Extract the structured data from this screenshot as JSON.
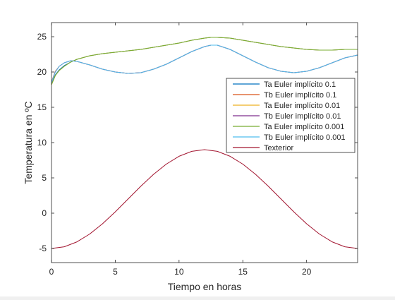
{
  "chart_data": {
    "type": "line",
    "title": "",
    "xlabel": "Tiempo en horas",
    "ylabel": "Temperatura en ºC",
    "xlim": [
      0,
      24
    ],
    "ylim": [
      -7,
      27
    ],
    "xticks": [
      0,
      5,
      10,
      15,
      20
    ],
    "yticks": [
      -5,
      0,
      5,
      10,
      15,
      20,
      25
    ],
    "grid": false,
    "legend_position": "right",
    "series": [
      {
        "name": "Ta Euler implícito 0.1",
        "color": "#0072bd",
        "x": [
          0,
          0.3,
          0.6,
          1,
          1.5,
          2,
          3,
          4,
          5,
          6,
          7,
          8,
          9,
          10,
          11,
          12,
          12.5,
          13,
          14,
          15,
          16,
          17,
          18,
          19,
          20,
          21,
          22,
          23,
          24
        ],
        "y": [
          18.3,
          19.6,
          20.3,
          20.9,
          21.4,
          21.8,
          22.3,
          22.6,
          22.8,
          23.0,
          23.2,
          23.5,
          23.8,
          24.1,
          24.5,
          24.8,
          24.9,
          24.9,
          24.8,
          24.5,
          24.2,
          23.9,
          23.6,
          23.4,
          23.2,
          23.1,
          23.1,
          23.2,
          23.2
        ]
      },
      {
        "name": "Tb Euler implícito 0.1",
        "color": "#d95319",
        "x": [
          0,
          0.3,
          0.6,
          1,
          1.5,
          2,
          3,
          4,
          5,
          6,
          7,
          8,
          9,
          10,
          11,
          12,
          12.5,
          13,
          14,
          15,
          16,
          17,
          18,
          19,
          20,
          21,
          22,
          23,
          24
        ],
        "y": [
          18.6,
          20.1,
          20.8,
          21.3,
          21.6,
          21.5,
          21.0,
          20.4,
          20.0,
          19.8,
          19.9,
          20.4,
          21.1,
          22.0,
          22.9,
          23.6,
          23.8,
          23.8,
          23.2,
          22.3,
          21.4,
          20.6,
          20.1,
          19.9,
          20.1,
          20.6,
          21.3,
          22.0,
          22.4
        ]
      },
      {
        "name": "Ta Euler implícito 0.01",
        "color": "#edb120",
        "x": [
          0,
          0.3,
          0.6,
          1,
          1.5,
          2,
          3,
          4,
          5,
          6,
          7,
          8,
          9,
          10,
          11,
          12,
          12.5,
          13,
          14,
          15,
          16,
          17,
          18,
          19,
          20,
          21,
          22,
          23,
          24
        ],
        "y": [
          18.2,
          19.5,
          20.2,
          20.8,
          21.4,
          21.8,
          22.3,
          22.6,
          22.8,
          23.0,
          23.2,
          23.5,
          23.8,
          24.1,
          24.5,
          24.8,
          24.9,
          24.9,
          24.8,
          24.5,
          24.2,
          23.9,
          23.6,
          23.4,
          23.2,
          23.1,
          23.1,
          23.2,
          23.2
        ]
      },
      {
        "name": "Tb Euler implícito 0.01",
        "color": "#7e2f8e",
        "x": [
          0,
          0.3,
          0.6,
          1,
          1.5,
          2,
          3,
          4,
          5,
          6,
          7,
          8,
          9,
          10,
          11,
          12,
          12.5,
          13,
          14,
          15,
          16,
          17,
          18,
          19,
          20,
          21,
          22,
          23,
          24
        ],
        "y": [
          18.5,
          20.0,
          20.8,
          21.3,
          21.6,
          21.5,
          21.0,
          20.4,
          20.0,
          19.8,
          19.9,
          20.4,
          21.1,
          22.0,
          22.9,
          23.6,
          23.8,
          23.8,
          23.2,
          22.3,
          21.4,
          20.6,
          20.1,
          19.9,
          20.1,
          20.6,
          21.3,
          22.0,
          22.4
        ]
      },
      {
        "name": "Ta Euler implícito 0.001",
        "color": "#77ac30",
        "x": [
          0,
          0.3,
          0.6,
          1,
          1.5,
          2,
          3,
          4,
          5,
          6,
          7,
          8,
          9,
          10,
          11,
          12,
          12.5,
          13,
          14,
          15,
          16,
          17,
          18,
          19,
          20,
          21,
          22,
          23,
          24
        ],
        "y": [
          18.2,
          19.5,
          20.2,
          20.8,
          21.4,
          21.8,
          22.3,
          22.6,
          22.8,
          23.0,
          23.2,
          23.5,
          23.8,
          24.1,
          24.5,
          24.8,
          24.9,
          24.9,
          24.8,
          24.5,
          24.2,
          23.9,
          23.6,
          23.4,
          23.2,
          23.1,
          23.1,
          23.2,
          23.2
        ]
      },
      {
        "name": "Tb Euler implícito 0.001",
        "color": "#4dbeee",
        "x": [
          0,
          0.3,
          0.6,
          1,
          1.5,
          2,
          3,
          4,
          5,
          6,
          7,
          8,
          9,
          10,
          11,
          12,
          12.5,
          13,
          14,
          15,
          16,
          17,
          18,
          19,
          20,
          21,
          22,
          23,
          24
        ],
        "y": [
          18.5,
          20.0,
          20.8,
          21.3,
          21.6,
          21.5,
          21.0,
          20.4,
          20.0,
          19.8,
          19.9,
          20.4,
          21.1,
          22.0,
          22.9,
          23.6,
          23.8,
          23.8,
          23.2,
          22.3,
          21.4,
          20.6,
          20.1,
          19.9,
          20.1,
          20.6,
          21.3,
          22.0,
          22.4
        ]
      },
      {
        "name": "Texterior",
        "color": "#a2142f",
        "x": [
          0,
          1,
          2,
          3,
          4,
          5,
          6,
          7,
          8,
          9,
          10,
          11,
          12,
          13,
          14,
          15,
          16,
          17,
          18,
          19,
          20,
          21,
          22,
          23,
          24
        ],
        "y": [
          -5.0,
          -4.76,
          -4.06,
          -2.95,
          -1.5,
          0.19,
          2.0,
          3.81,
          5.5,
          6.95,
          8.06,
          8.76,
          9.0,
          8.76,
          8.06,
          6.95,
          5.5,
          3.81,
          2.0,
          0.19,
          -1.5,
          -2.95,
          -4.06,
          -4.76,
          -5.0
        ]
      }
    ]
  }
}
